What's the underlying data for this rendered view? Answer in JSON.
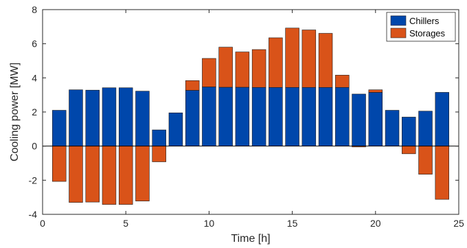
{
  "chart_data": {
    "type": "bar",
    "stacked": true,
    "x": [
      1,
      2,
      3,
      4,
      5,
      6,
      7,
      8,
      9,
      10,
      11,
      12,
      13,
      14,
      15,
      16,
      17,
      18,
      19,
      20,
      21,
      22,
      23,
      24
    ],
    "series": [
      {
        "name": "Chillers",
        "color": "#0047AB",
        "values": [
          2.1,
          3.3,
          3.28,
          3.42,
          3.42,
          3.22,
          0.95,
          1.95,
          3.27,
          3.47,
          3.45,
          3.45,
          3.44,
          3.44,
          3.44,
          3.44,
          3.44,
          3.44,
          3.05,
          3.15,
          2.1,
          1.7,
          2.05,
          3.15
        ]
      },
      {
        "name": "Storages",
        "color": "#D95319",
        "values": [
          -2.07,
          -3.3,
          -3.28,
          -3.42,
          -3.42,
          -3.22,
          -0.92,
          0,
          0.57,
          1.67,
          2.35,
          2.07,
          2.22,
          2.91,
          3.48,
          3.37,
          3.17,
          0.72,
          -0.05,
          0.15,
          0,
          -0.45,
          -1.65,
          -3.12
        ]
      }
    ],
    "xlabel": "Time [h]",
    "ylabel": "Cooling power [MW]",
    "xlim": [
      0,
      25
    ],
    "ylim": [
      -4,
      8
    ],
    "xticks": [
      0,
      5,
      10,
      15,
      20,
      25
    ],
    "yticks": [
      -4,
      -2,
      0,
      2,
      4,
      6,
      8
    ],
    "legend_position": "top-right",
    "grid": false
  }
}
